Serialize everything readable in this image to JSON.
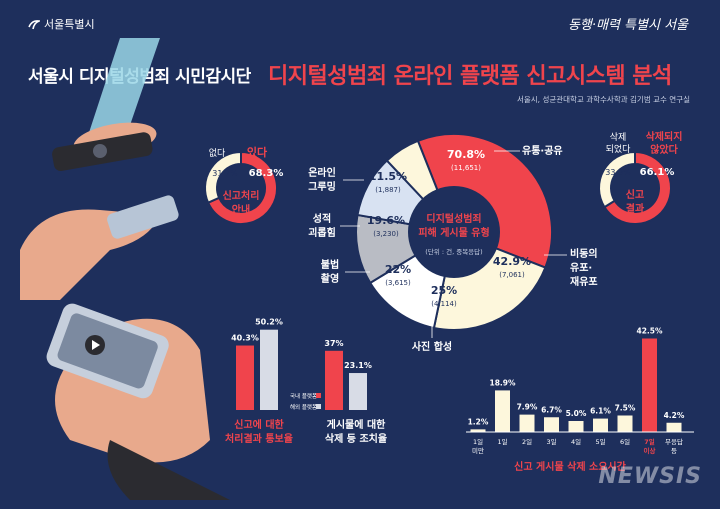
{
  "header": {
    "org": "서울특별시",
    "brand": "동행·매력 특별시 서울",
    "title_left": "서울시 디지털성범죄 시민감시단",
    "title_right": "디지털성범죄 온라인 플랫폼 신고시스템 분석",
    "credit": "서울시, 성균관대학교 과학수사학과 김기범 교수 연구실"
  },
  "chart_data": [
    {
      "type": "pie",
      "title": "신고처리 안내",
      "slices": [
        {
          "label": "있다",
          "value": 68.3,
          "color": "#f0444c"
        },
        {
          "label": "없다",
          "value": 31.7,
          "color": "#fdf7dc"
        }
      ]
    },
    {
      "type": "pie",
      "title": "디지털성범죄 피해 게시물 유형",
      "note": "(단위 : 건, 중복응답)",
      "slices": [
        {
          "label": "유통·공유",
          "value": 70.8,
          "count": "(11,651)",
          "color": "#f0444c"
        },
        {
          "label": "비동의 유포·재유포",
          "value": 42.9,
          "count": "(7,061)",
          "color": "#fdf7dc"
        },
        {
          "label": "사진 합성",
          "value": 25,
          "count": "(4,114)",
          "color": "#ffffff"
        },
        {
          "label": "불법 촬영",
          "value": 22,
          "count": "(3,615)",
          "color": "#b9bcc4"
        },
        {
          "label": "성적 괴롭힘",
          "value": 19.6,
          "count": "(3,230)",
          "color": "#d8e2f2"
        },
        {
          "label": "온라인 그루밍",
          "value": 11.5,
          "count": "(1,887)",
          "color": "#fdf7dc"
        }
      ]
    },
    {
      "type": "pie",
      "title": "신고 결과",
      "slices": [
        {
          "label": "삭제되지 않았다",
          "value": 66.1,
          "color": "#f0444c"
        },
        {
          "label": "삭제 되었다",
          "value": 33.9,
          "color": "#fdf7dc"
        }
      ]
    },
    {
      "type": "bar",
      "categories": [
        "신고에 대한 처리결과 통보율",
        "게시물에 대한 삭제 등 조치율"
      ],
      "series": [
        {
          "name": "국내 플랫폼",
          "values": [
            40.3,
            37
          ],
          "color": "#f0444c"
        },
        {
          "name": "해외 플랫폼",
          "values": [
            50.2,
            23.1
          ],
          "color": "#d8dce6"
        }
      ],
      "data_labels": [
        [
          "40.3%",
          "50.2%"
        ],
        [
          "37%",
          "23.1%"
        ]
      ]
    },
    {
      "type": "bar",
      "title": "신고 게시물 삭제 소요시간",
      "categories": [
        "1일 미만",
        "1일",
        "2일",
        "3일",
        "4일",
        "5일",
        "6일",
        "7일 이상",
        "무응답 등"
      ],
      "values": [
        1.2,
        18.9,
        7.9,
        6.7,
        5.0,
        6.1,
        7.5,
        42.5,
        4.2
      ],
      "labels": [
        "1.2%",
        "18.9%",
        "7.9%",
        "6.7%",
        "5.0%",
        "6.1%",
        "7.5%",
        "42.5%",
        "4.2%"
      ],
      "highlight_index": 7,
      "colors": {
        "normal": "#fdf7dc",
        "highlight": "#f0444c"
      }
    }
  ],
  "watermark": "NEWSIS"
}
